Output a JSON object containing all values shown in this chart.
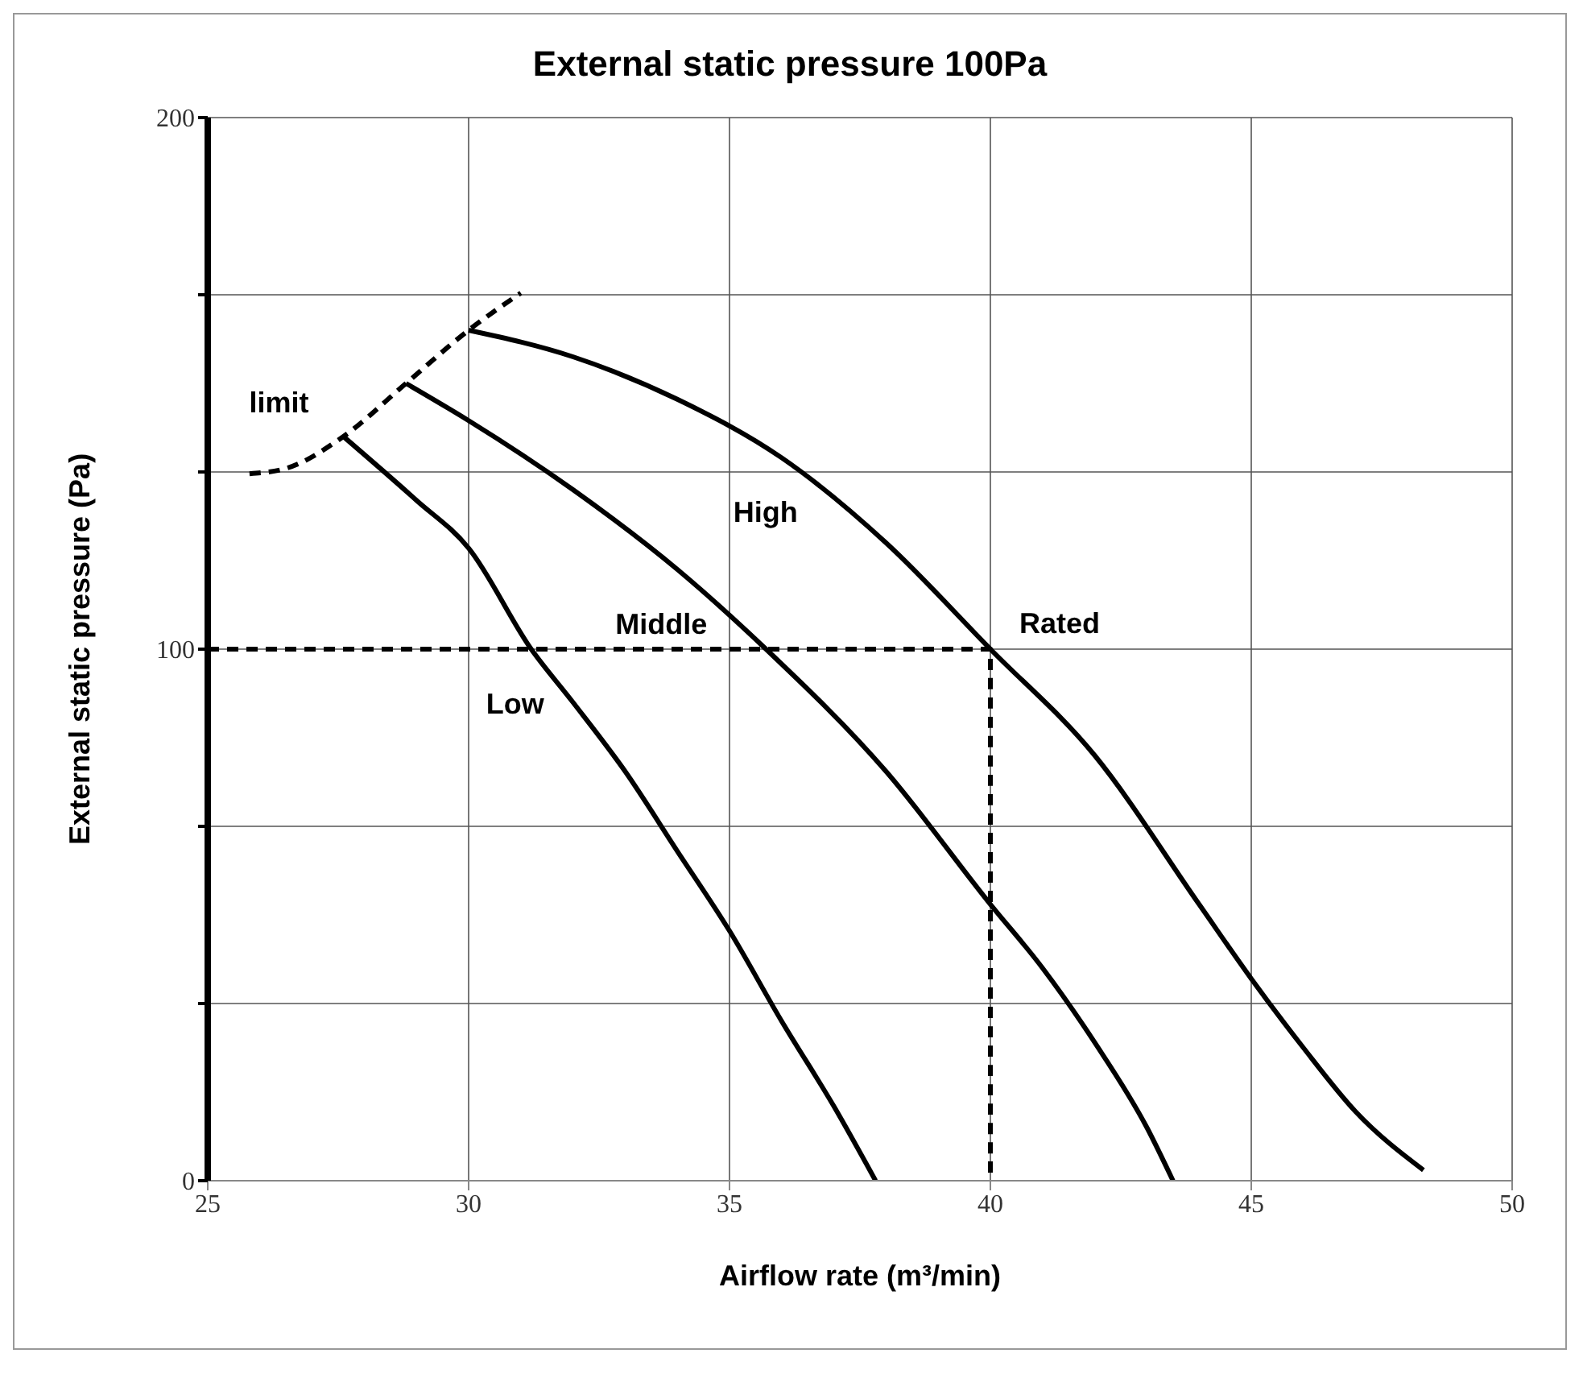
{
  "chart_data": {
    "type": "line",
    "title": "External static pressure 100Pa",
    "xlabel": "Airflow rate (m³/min)",
    "ylabel": "External  static pressure (Pa)",
    "xlim": [
      25,
      50
    ],
    "xticks": [
      25,
      30,
      35,
      40,
      45,
      50
    ],
    "ylim": [
      0,
      200
    ],
    "yticks": [
      0,
      {
        "value": 33.33,
        "label": null
      },
      {
        "value": 66.67,
        "label": null
      },
      100,
      {
        "value": 133.33,
        "label": null
      },
      {
        "value": 166.67,
        "label": null
      },
      200
    ],
    "grid": true,
    "marker": "none",
    "line_style": "solid",
    "legend": false,
    "series": [
      {
        "name": "High",
        "color": "#000000",
        "x": [
          30,
          32,
          34,
          36,
          38,
          40,
          42,
          44,
          45,
          46,
          47,
          48.3
        ],
        "values": [
          160,
          155,
          147,
          136,
          120,
          100,
          80,
          52,
          38,
          25,
          13,
          2
        ]
      },
      {
        "name": "Middle",
        "color": "#000000",
        "x": [
          28.8,
          30,
          32,
          34,
          35.7,
          38,
          40,
          41,
          42,
          43,
          43.5
        ],
        "values": [
          150,
          143,
          130,
          115,
          100,
          77,
          52,
          40,
          26,
          10,
          0
        ]
      },
      {
        "name": "Low",
        "color": "#000000",
        "x": [
          27.6,
          29,
          30,
          31.2,
          32,
          33,
          34,
          35,
          36,
          37,
          37.8
        ],
        "values": [
          140,
          128,
          119,
          100,
          90,
          77,
          62,
          47,
          30,
          14,
          0
        ]
      },
      {
        "name": "limit",
        "color": "#000000",
        "line_style": "dashed",
        "x": [
          25.8,
          26.5,
          27.6,
          28.8,
          30,
          31
        ],
        "values": [
          133,
          134,
          140,
          150,
          160,
          167
        ]
      },
      {
        "color": "#000000",
        "line_style": "dashed",
        "x": [
          25,
          40,
          40
        ],
        "values": [
          100,
          100,
          0
        ]
      }
    ],
    "annotations": [
      {
        "text": "Rated",
        "x": 40,
        "y": 100
      }
    ]
  }
}
